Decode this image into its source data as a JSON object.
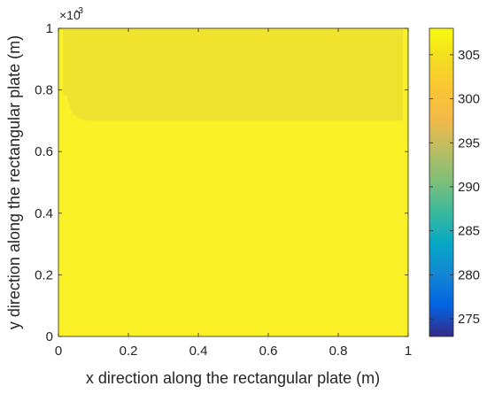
{
  "chart_data": {
    "type": "heatmap",
    "xlabel": "x direction along the rectangular plate (m)",
    "ylabel": "y direction along the rectangular plate (m)",
    "xlim": [
      0,
      1
    ],
    "ylim": [
      0,
      0.001
    ],
    "y_exponent_label": "×10",
    "y_exponent": "-3",
    "x_ticks": [
      0,
      0.2,
      0.4,
      0.6,
      0.8,
      1
    ],
    "x_tick_labels": [
      "0",
      "0.2",
      "0.4",
      "0.6",
      "0.8",
      "1"
    ],
    "y_ticks": [
      0,
      0.0002,
      0.0004,
      0.0006,
      0.0008,
      0.001
    ],
    "y_tick_labels": [
      "0",
      "0.2",
      "0.4",
      "0.6",
      "0.8",
      "1"
    ],
    "colorbar": {
      "colormap": "parula",
      "clim": [
        273,
        308
      ],
      "ticks": [
        275,
        280,
        285,
        290,
        295,
        300,
        305
      ],
      "tick_labels": [
        "275",
        "280",
        "285",
        "290",
        "295",
        "300",
        "305"
      ]
    },
    "regions": [
      {
        "name": "",
        "y_range": [
          0,
          0.0007
        ],
        "value": 308,
        "color": "#f9f125"
      },
      {
        "name": "",
        "y_range": [
          0.0007,
          0.001
        ],
        "value": 306.5,
        "color": "#efe32f"
      }
    ]
  }
}
